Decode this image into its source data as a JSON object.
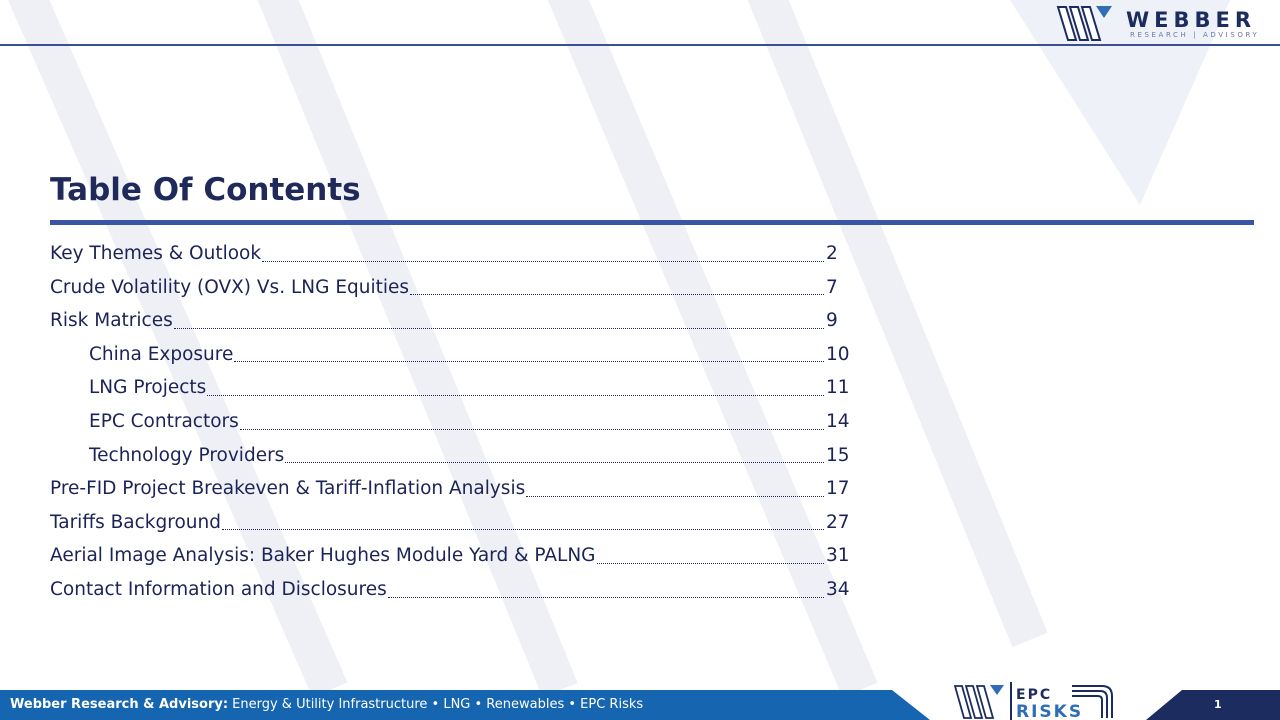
{
  "header": {
    "logo_word": "WEBBER",
    "logo_subtitle": "RESEARCH | ADVISORY"
  },
  "toc": {
    "title": "Table Of Contents",
    "entries": [
      {
        "label": "Key Themes & Outlook",
        "page": "2"
      },
      {
        "label": "Crude Volatility (OVX) Vs. LNG Equities",
        "page": "7"
      },
      {
        "label": "Risk Matrices",
        "page": "9"
      },
      {
        "label": "China Exposure",
        "page": "10"
      },
      {
        "label": "LNG Projects",
        "page": "11"
      },
      {
        "label": "EPC Contractors",
        "page": "14"
      },
      {
        "label": "Technology Providers",
        "page": "15"
      },
      {
        "label": "Pre-FID Project Breakeven & Tariff-Inflation Analysis",
        "page": "17"
      },
      {
        "label": "Tariffs Background",
        "page": "27"
      },
      {
        "label": "Aerial Image Analysis: Baker Hughes Module Yard & PALNG",
        "page": "31"
      },
      {
        "label": "Contact Information and Disclosures",
        "page": "34"
      }
    ]
  },
  "footer": {
    "brand": "Webber Research & Advisory:",
    "tagline": " Energy & Utility Infrastructure • LNG • Renewables • EPC Risks",
    "logo_top": "EPC",
    "logo_bottom": "RISKS",
    "page_number": "1"
  },
  "colors": {
    "navy": "#1c2c5e",
    "accent_blue": "#3a55a5",
    "footer_blue": "#1565b0",
    "watermark": "#eef0f6"
  }
}
